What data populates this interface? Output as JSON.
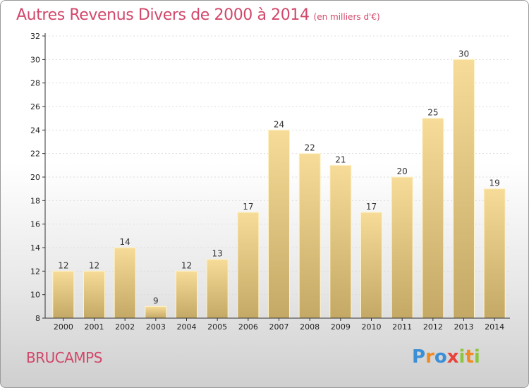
{
  "title": "Autres Revenus Divers de 2000 à 2014",
  "subtitle": "(en milliers d'€)",
  "city": "BRUCAMPS",
  "logo": {
    "text": "Proxiti",
    "letters": [
      {
        "ch": "P",
        "color": "#3a8fd6"
      },
      {
        "ch": "r",
        "color": "#f08a24"
      },
      {
        "ch": "o",
        "color": "#3a8fd6"
      },
      {
        "ch": "x",
        "color": "#e8433a"
      },
      {
        "ch": "i",
        "color": "#8cc63e"
      },
      {
        "ch": "t",
        "color": "#f08a24"
      },
      {
        "ch": "i",
        "color": "#8cc63e"
      }
    ]
  },
  "colors": {
    "accent": "#d2476a",
    "bar_top": "#f6dc98",
    "bar_bottom": "#c4a865",
    "axis": "#333333",
    "grid": "#dddddd"
  },
  "chart_data": {
    "type": "bar",
    "title": "Autres Revenus Divers de 2000 à 2014",
    "subtitle": "(en milliers d'€)",
    "categories": [
      "2000",
      "2001",
      "2002",
      "2003",
      "2004",
      "2005",
      "2006",
      "2007",
      "2008",
      "2009",
      "2010",
      "2011",
      "2012",
      "2013",
      "2014"
    ],
    "values": [
      12,
      12,
      14,
      9,
      12,
      13,
      17,
      24,
      22,
      21,
      17,
      20,
      25,
      30,
      19
    ],
    "ylim": [
      8,
      32
    ],
    "yticks": [
      8,
      10,
      12,
      14,
      16,
      18,
      20,
      22,
      24,
      26,
      28,
      30,
      32
    ],
    "grid": true,
    "data_labels": true
  }
}
